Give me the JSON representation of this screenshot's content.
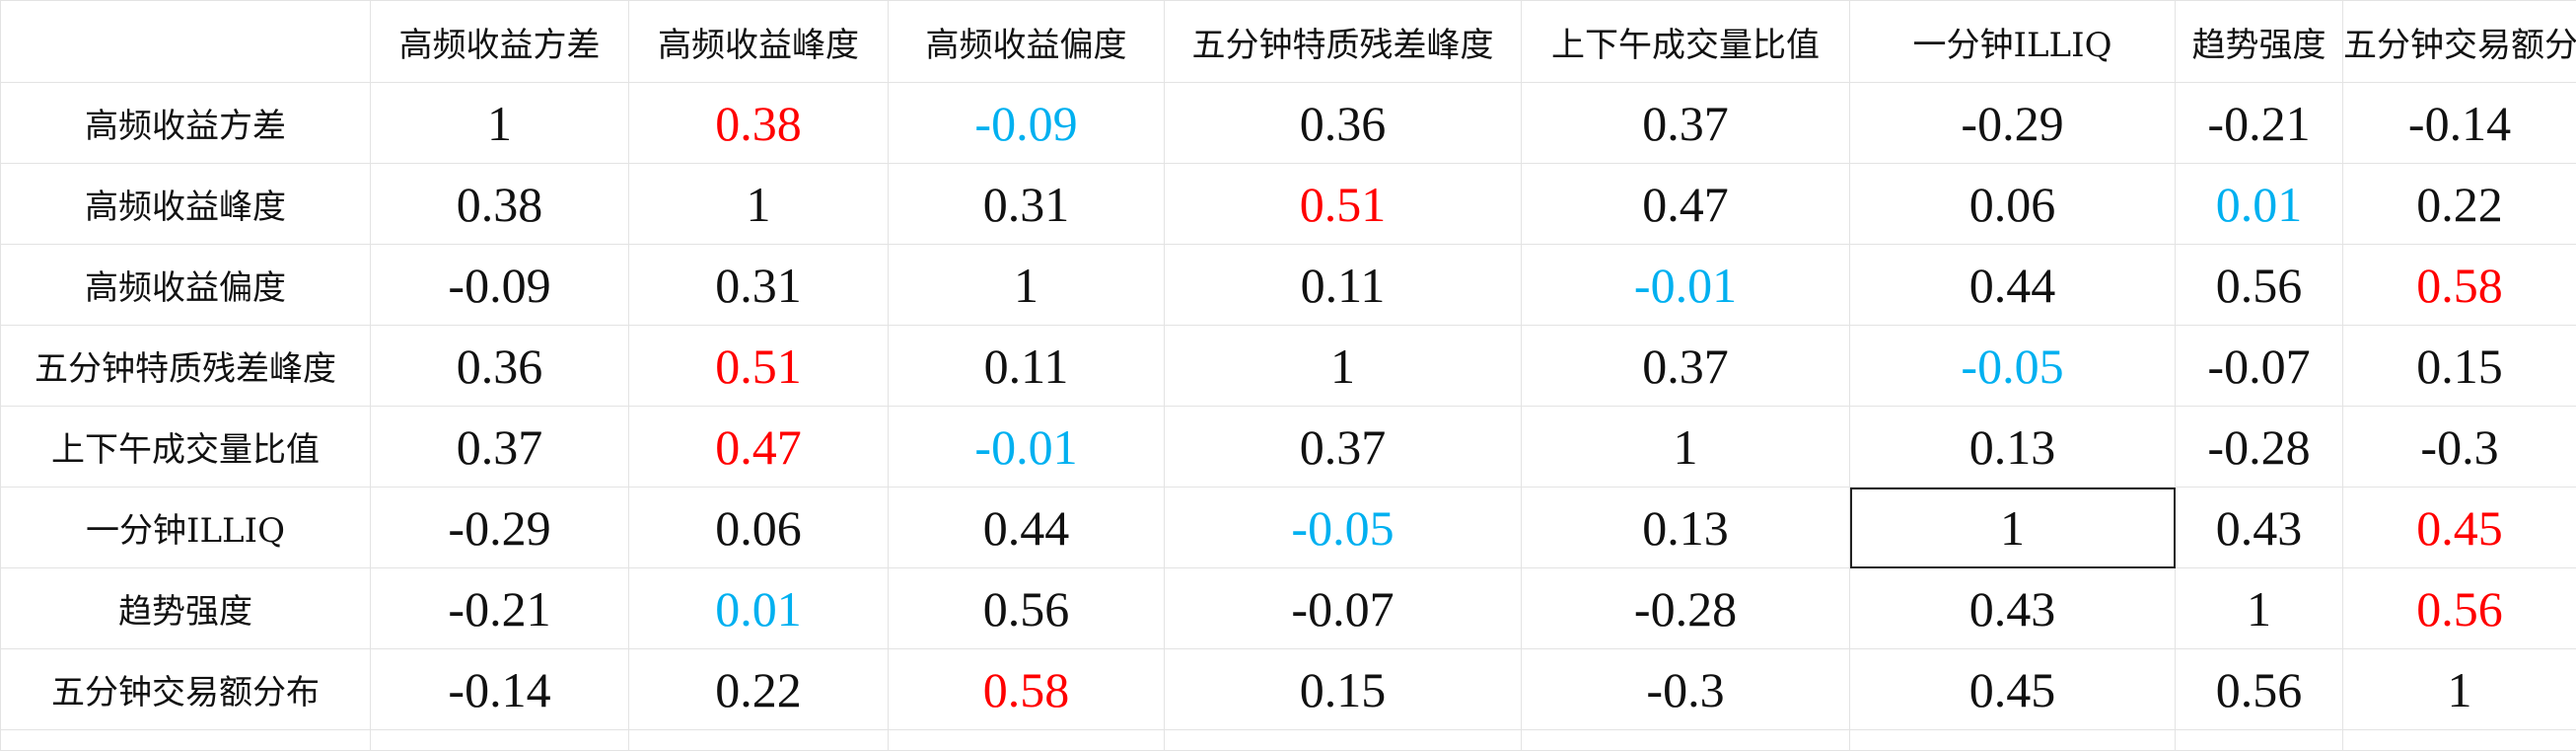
{
  "columns": [
    "高频收益方差",
    "高频收益峰度",
    "高频收益偏度",
    "五分钟特质残差峰度",
    "上下午成交量比值",
    "一分钟ILLIQ",
    "趋势强度",
    "五分钟交易额分布"
  ],
  "rows": [
    {
      "label": "高频收益方差",
      "values": [
        "1",
        "0.38",
        "-0.09",
        "0.36",
        "0.37",
        "-0.29",
        "-0.21",
        "-0.14"
      ],
      "colors": [
        "",
        "red",
        "blue",
        "",
        "",
        "",
        "",
        ""
      ]
    },
    {
      "label": "高频收益峰度",
      "values": [
        "0.38",
        "1",
        "0.31",
        "0.51",
        "0.47",
        "0.06",
        "0.01",
        "0.22"
      ],
      "colors": [
        "",
        "",
        "",
        "red",
        "",
        "",
        "blue",
        ""
      ]
    },
    {
      "label": "高频收益偏度",
      "values": [
        "-0.09",
        "0.31",
        "1",
        "0.11",
        "-0.01",
        "0.44",
        "0.56",
        "0.58"
      ],
      "colors": [
        "",
        "",
        "",
        "",
        "blue",
        "",
        "",
        "red"
      ]
    },
    {
      "label": "五分钟特质残差峰度",
      "values": [
        "0.36",
        "0.51",
        "0.11",
        "1",
        "0.37",
        "-0.05",
        "-0.07",
        "0.15"
      ],
      "colors": [
        "",
        "red",
        "",
        "",
        "",
        "blue",
        "",
        ""
      ]
    },
    {
      "label": "上下午成交量比值",
      "values": [
        "0.37",
        "0.47",
        "-0.01",
        "0.37",
        "1",
        "0.13",
        "-0.28",
        "-0.3"
      ],
      "colors": [
        "",
        "red",
        "blue",
        "",
        "",
        "",
        "",
        ""
      ]
    },
    {
      "label": "一分钟ILLIQ",
      "values": [
        "-0.29",
        "0.06",
        "0.44",
        "-0.05",
        "0.13",
        "1",
        "0.43",
        "0.45"
      ],
      "colors": [
        "",
        "",
        "",
        "blue",
        "",
        "",
        "",
        "red"
      ]
    },
    {
      "label": "趋势强度",
      "values": [
        "-0.21",
        "0.01",
        "0.56",
        "-0.07",
        "-0.28",
        "0.43",
        "1",
        "0.56"
      ],
      "colors": [
        "",
        "blue",
        "",
        "",
        "",
        "",
        "",
        "red"
      ]
    },
    {
      "label": "五分钟交易额分布",
      "values": [
        "-0.14",
        "0.22",
        "0.58",
        "0.15",
        "-0.3",
        "0.45",
        "0.56",
        "1"
      ],
      "colors": [
        "",
        "",
        "red",
        "",
        "",
        "",
        "",
        ""
      ]
    }
  ],
  "selected_cell": {
    "row": 5,
    "col": 5
  },
  "colors": {
    "red": "#ff0000",
    "blue": "#00b0f0",
    "text": "#111111",
    "grid": "#e3e3e3"
  }
}
